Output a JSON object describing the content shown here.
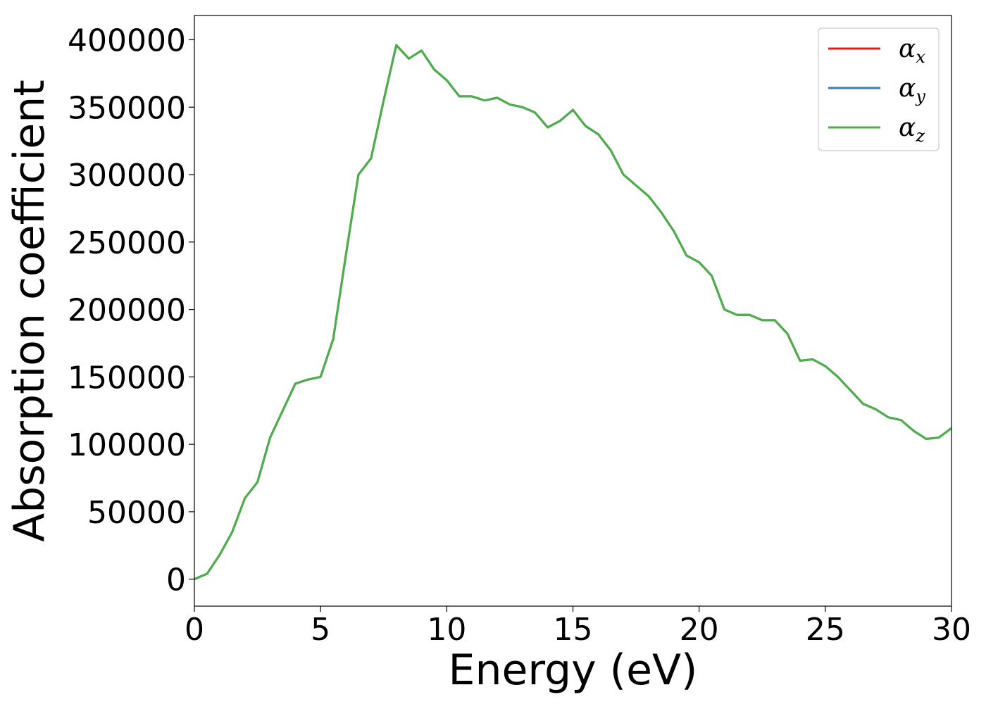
{
  "chart_data": {
    "type": "line",
    "title": "",
    "xlabel": "Energy (eV)",
    "ylabel": "Absorption coefficient",
    "xlim": [
      0,
      30
    ],
    "ylim": [
      -20000,
      418000
    ],
    "xticks": [
      0,
      5,
      10,
      15,
      20,
      25,
      30
    ],
    "xtick_labels": [
      "0",
      "5",
      "10",
      "15",
      "20",
      "25",
      "30"
    ],
    "yticks": [
      0,
      50000,
      100000,
      150000,
      200000,
      250000,
      300000,
      350000,
      400000
    ],
    "ytick_labels": [
      "0",
      "50000",
      "100000",
      "150000",
      "200000",
      "250000",
      "300000",
      "350000",
      "400000"
    ],
    "grid": false,
    "legend_position": "top-right",
    "series": [
      {
        "name": "αx",
        "symbol": "α",
        "subscript": "x",
        "color": "#e41a1c",
        "x": [
          0,
          0.5,
          1,
          1.5,
          2,
          2.5,
          3,
          3.5,
          4,
          4.5,
          5,
          5.5,
          6,
          6.5,
          7,
          7.5,
          8,
          8.5,
          9,
          9.5,
          10,
          10.5,
          11,
          11.5,
          12,
          12.5,
          13,
          13.5,
          14,
          14.5,
          15,
          15.5,
          16,
          16.5,
          17,
          17.5,
          18,
          18.5,
          19,
          19.5,
          20,
          20.5,
          21,
          21.5,
          22,
          22.5,
          23,
          23.5,
          24,
          24.5,
          25,
          25.5,
          26,
          26.5,
          27,
          27.5,
          28,
          28.5,
          29,
          29.5,
          30
        ],
        "y": [
          0,
          4000,
          18000,
          35000,
          60000,
          72000,
          105000,
          125000,
          145000,
          148000,
          150000,
          178000,
          240000,
          300000,
          312000,
          355000,
          396000,
          386000,
          392000,
          378000,
          370000,
          358000,
          358000,
          355000,
          357000,
          352000,
          350000,
          346000,
          335000,
          340000,
          348000,
          336000,
          330000,
          318000,
          300000,
          292000,
          284000,
          272000,
          258000,
          240000,
          235000,
          225000,
          200000,
          196000,
          196000,
          192000,
          192000,
          182000,
          162000,
          163000,
          158000,
          150000,
          140000,
          130000,
          126000,
          120000,
          118000,
          110000,
          104000,
          105000,
          112000
        ]
      },
      {
        "name": "αy",
        "symbol": "α",
        "subscript": "y",
        "color": "#377eb8",
        "x": [
          0,
          0.5,
          1,
          1.5,
          2,
          2.5,
          3,
          3.5,
          4,
          4.5,
          5,
          5.5,
          6,
          6.5,
          7,
          7.5,
          8,
          8.5,
          9,
          9.5,
          10,
          10.5,
          11,
          11.5,
          12,
          12.5,
          13,
          13.5,
          14,
          14.5,
          15,
          15.5,
          16,
          16.5,
          17,
          17.5,
          18,
          18.5,
          19,
          19.5,
          20,
          20.5,
          21,
          21.5,
          22,
          22.5,
          23,
          23.5,
          24,
          24.5,
          25,
          25.5,
          26,
          26.5,
          27,
          27.5,
          28,
          28.5,
          29,
          29.5,
          30
        ],
        "y": [
          0,
          4000,
          18000,
          35000,
          60000,
          72000,
          105000,
          125000,
          145000,
          148000,
          150000,
          178000,
          240000,
          300000,
          312000,
          355000,
          396000,
          386000,
          392000,
          378000,
          370000,
          358000,
          358000,
          355000,
          357000,
          352000,
          350000,
          346000,
          335000,
          340000,
          348000,
          336000,
          330000,
          318000,
          300000,
          292000,
          284000,
          272000,
          258000,
          240000,
          235000,
          225000,
          200000,
          196000,
          196000,
          192000,
          192000,
          182000,
          162000,
          163000,
          158000,
          150000,
          140000,
          130000,
          126000,
          120000,
          118000,
          110000,
          104000,
          105000,
          112000
        ]
      },
      {
        "name": "αz",
        "symbol": "α",
        "subscript": "z",
        "color": "#4daf4a",
        "x": [
          0,
          0.5,
          1,
          1.5,
          2,
          2.5,
          3,
          3.5,
          4,
          4.5,
          5,
          5.5,
          6,
          6.5,
          7,
          7.5,
          8,
          8.5,
          9,
          9.5,
          10,
          10.5,
          11,
          11.5,
          12,
          12.5,
          13,
          13.5,
          14,
          14.5,
          15,
          15.5,
          16,
          16.5,
          17,
          17.5,
          18,
          18.5,
          19,
          19.5,
          20,
          20.5,
          21,
          21.5,
          22,
          22.5,
          23,
          23.5,
          24,
          24.5,
          25,
          25.5,
          26,
          26.5,
          27,
          27.5,
          28,
          28.5,
          29,
          29.5,
          30
        ],
        "y": [
          0,
          4000,
          18000,
          35000,
          60000,
          72000,
          105000,
          125000,
          145000,
          148000,
          150000,
          178000,
          240000,
          300000,
          312000,
          355000,
          396000,
          386000,
          392000,
          378000,
          370000,
          358000,
          358000,
          355000,
          357000,
          352000,
          350000,
          346000,
          335000,
          340000,
          348000,
          336000,
          330000,
          318000,
          300000,
          292000,
          284000,
          272000,
          258000,
          240000,
          235000,
          225000,
          200000,
          196000,
          196000,
          192000,
          192000,
          182000,
          162000,
          163000,
          158000,
          150000,
          140000,
          130000,
          126000,
          120000,
          118000,
          110000,
          104000,
          105000,
          112000
        ]
      }
    ]
  }
}
